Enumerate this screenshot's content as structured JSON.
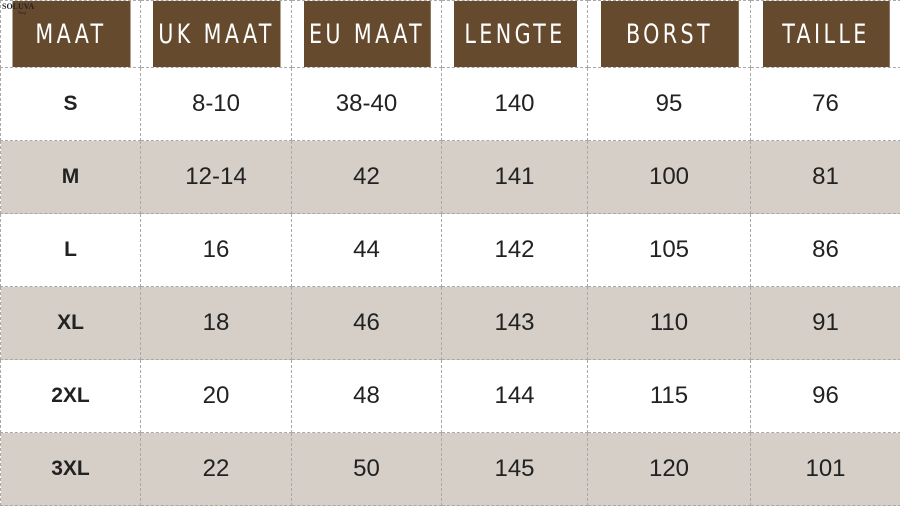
{
  "logo": {
    "name": "SOLUVA",
    "sub": "Shop"
  },
  "headers": [
    "MAAT",
    "UK MAAT",
    "EU MAAT",
    "LENGTE",
    "BORST",
    "TAILLE"
  ],
  "rows": [
    [
      "S",
      "8-10",
      "38-40",
      "140",
      "95",
      "76"
    ],
    [
      "M",
      "12-14",
      "42",
      "141",
      "100",
      "81"
    ],
    [
      "L",
      "16",
      "44",
      "142",
      "105",
      "86"
    ],
    [
      "XL",
      "18",
      "46",
      "143",
      "110",
      "91"
    ],
    [
      "2XL",
      "20",
      "48",
      "144",
      "115",
      "96"
    ],
    [
      "3XL",
      "22",
      "50",
      "145",
      "120",
      "101"
    ]
  ],
  "colors": {
    "header": "#654a2e",
    "alt_row": "#d5cfc8"
  }
}
